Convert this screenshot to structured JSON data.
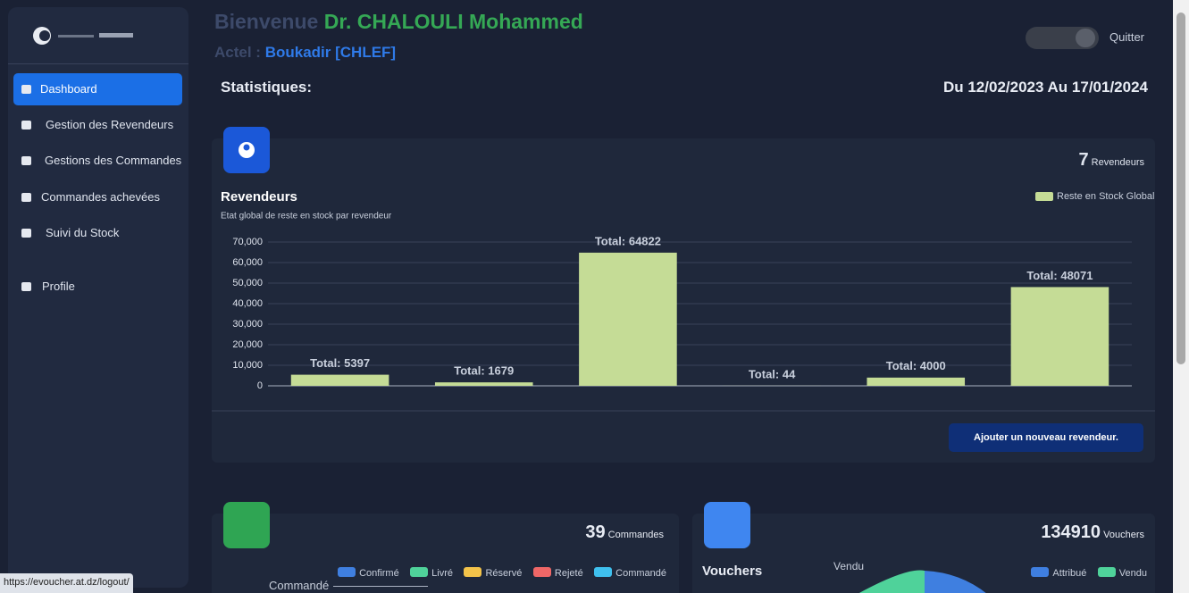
{
  "sidebar": {
    "menu": [
      "Dashboard",
      "Gestion des Revendeurs",
      "Gestions des Commandes",
      "Commandes achevées",
      "Suivi du Stock",
      "Profile"
    ]
  },
  "header": {
    "greeting": "Bienvenue",
    "name": "Dr. CHALOULI Mohammed",
    "actel_label": "Actel :",
    "actel": "Boukadir [CHLEF]",
    "quit": "Quitter"
  },
  "stats": {
    "title": "Statistiques:",
    "period": "Du 12/02/2023 Au 17/01/2024"
  },
  "revendeurs_card": {
    "count": 7,
    "count_label": "Revendeurs",
    "button": "Ajouter un nouveau revendeur."
  },
  "chart_data": {
    "type": "bar",
    "title": "Revendeurs",
    "subtitle": "Etat global de reste en stock par revendeur",
    "categories": [
      null,
      null,
      null,
      null,
      null,
      null
    ],
    "series": [
      {
        "name": "Reste en Stock Global",
        "color": "#c5dc96",
        "values": [
          5397,
          1679,
          64822,
          44,
          4000,
          48071
        ],
        "value_labels": [
          "Total: 5397",
          "Total: 1679",
          "Total: 64822",
          "Total: 44",
          "Total: 4000",
          "Total: 48071"
        ]
      }
    ],
    "ylim": [
      0,
      70000
    ],
    "yticks": [
      0,
      {
        "value": 10000,
        "label": "10,000"
      },
      {
        "value": 20000,
        "label": "20,000"
      },
      {
        "value": 30000,
        "label": "30,000"
      },
      {
        "value": 40000,
        "label": "40,000"
      },
      {
        "value": 50000,
        "label": "50,000"
      },
      {
        "value": 60000,
        "label": "60,000"
      },
      {
        "value": 70000,
        "label": "70,000"
      }
    ],
    "grid": true,
    "legend": "top-right"
  },
  "commandes_card": {
    "count": 39,
    "count_label": "Commandes",
    "legend": [
      "Confirmé",
      "Livré",
      "Réservé",
      "Rejeté",
      "Commandé"
    ],
    "axis_label": "Commandé"
  },
  "vouchers_card": {
    "count": 134910,
    "count_label": "Vouchers",
    "title": "Vouchers",
    "legend": [
      "Attribué",
      "Vendu"
    ],
    "slice_label": "Vendu"
  },
  "status_bar": {
    "url": "https://evoucher.at.dz/logout/"
  }
}
